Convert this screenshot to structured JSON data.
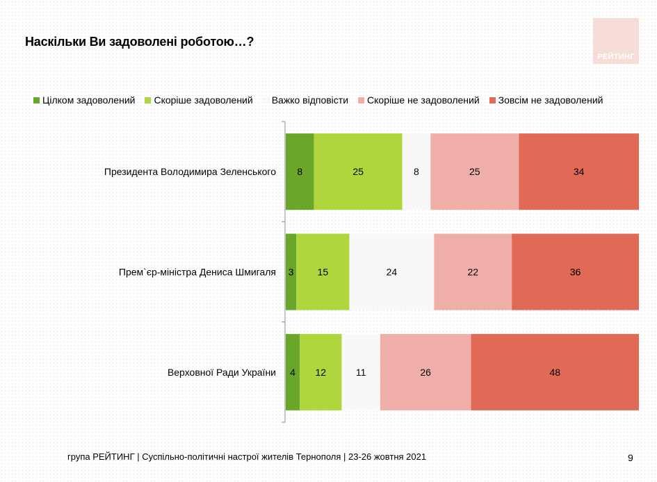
{
  "page": {
    "title": "Наскільки Ви задоволені роботою…?",
    "logo_text": "РЕЙТИНГ",
    "footer": "група РЕЙТИНГ | Суспільно-політичні настрої жителів Тернополя | 23-26 жовтня 2021",
    "page_number": "9"
  },
  "chart_data": {
    "type": "bar",
    "orientation": "horizontal",
    "stacked": true,
    "title": "Наскільки Ви задоволені роботою…?",
    "xlabel": "",
    "ylabel": "",
    "categories": [
      "Президента Володимира Зеленського",
      "Прем`єр-міністра Дениса Шмигаля",
      "Верховної Ради України"
    ],
    "legend_position": "top",
    "grid": false,
    "series": [
      {
        "name": "Цілком задоволений",
        "color": "#6aa629",
        "values": [
          8,
          3,
          4
        ]
      },
      {
        "name": "Скоріше задоволений",
        "color": "#afd63c",
        "values": [
          25,
          15,
          12
        ]
      },
      {
        "name": "Важко відповісти",
        "color": "#f8f8f8",
        "values": [
          8,
          24,
          11
        ]
      },
      {
        "name": "Скоріше не задоволений",
        "color": "#efafa8",
        "values": [
          25,
          22,
          26
        ]
      },
      {
        "name": "Зовсім не задоволений",
        "color": "#e06a55",
        "values": [
          34,
          36,
          48
        ]
      }
    ]
  }
}
